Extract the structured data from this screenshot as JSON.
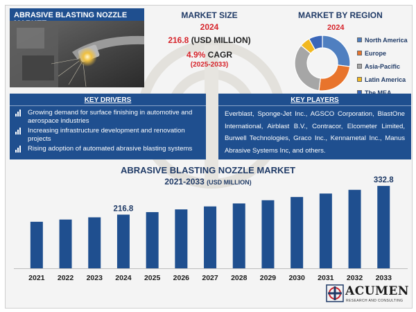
{
  "report": {
    "title": "ABRASIVE BLASTING NOZZLE MARKET"
  },
  "market_size": {
    "heading": "MARKET SIZE",
    "year": "2024",
    "value": "216.8",
    "unit": "(USD MILLION)",
    "cagr_value": "4.9%",
    "cagr_label": "CAGR",
    "period": "(2025-2033)"
  },
  "region": {
    "heading": "MARKET BY REGION",
    "year": "2024",
    "segments": [
      {
        "label": "North America",
        "color": "#4f7fc0",
        "share": 0.27
      },
      {
        "label": "Europe",
        "color": "#e8742c",
        "share": 0.25
      },
      {
        "label": "Asia-Pacific",
        "color": "#a6a6a6",
        "share": 0.34
      },
      {
        "label": "Latin America",
        "color": "#f2b820",
        "share": 0.06
      },
      {
        "label": "The MEA",
        "color": "#3a66b8",
        "share": 0.08
      }
    ]
  },
  "drivers": {
    "heading": "KEY DRIVERS",
    "items": [
      "Growing demand for surface finishing in automotive and aerospace industries",
      "Increasing infrastructure development and renovation projects",
      "Rising adoption of automated abrasive blasting systems"
    ]
  },
  "players": {
    "heading": "KEY PLAYERS",
    "text": "Everblast, Sponge-Jet Inc., AGSCO Corporation, BlastOne International, Airblast B.V., Contracor, Elcometer Limited, Burwell Technologies, Graco Inc., Kennametal Inc., Manus Abrasive Systems Inc, and others."
  },
  "chart_heading": {
    "title": "ABRASIVE BLASTING NOZZLE MARKET",
    "years": "2021-2033",
    "unit": "(USD MILLION)"
  },
  "chart_data": {
    "type": "bar",
    "title": "ABRASIVE BLASTING NOZZLE MARKET 2021-2033 (USD MILLION)",
    "categories": [
      "2021",
      "2022",
      "2023",
      "2024",
      "2025",
      "2026",
      "2027",
      "2028",
      "2029",
      "2030",
      "2031",
      "2032",
      "2033"
    ],
    "values": [
      188,
      197,
      206,
      216.8,
      227,
      238,
      250,
      262,
      275,
      288,
      302,
      317,
      332.8
    ],
    "data_labels": {
      "2024": "216.8",
      "2033": "332.8"
    },
    "bar_color": "#1f4f8f",
    "xlabel": "",
    "ylabel": "",
    "ylim": [
      0,
      350
    ],
    "grid": false
  },
  "logo": {
    "name": "ACUMEN",
    "tagline": "RESEARCH AND CONSULTING"
  }
}
